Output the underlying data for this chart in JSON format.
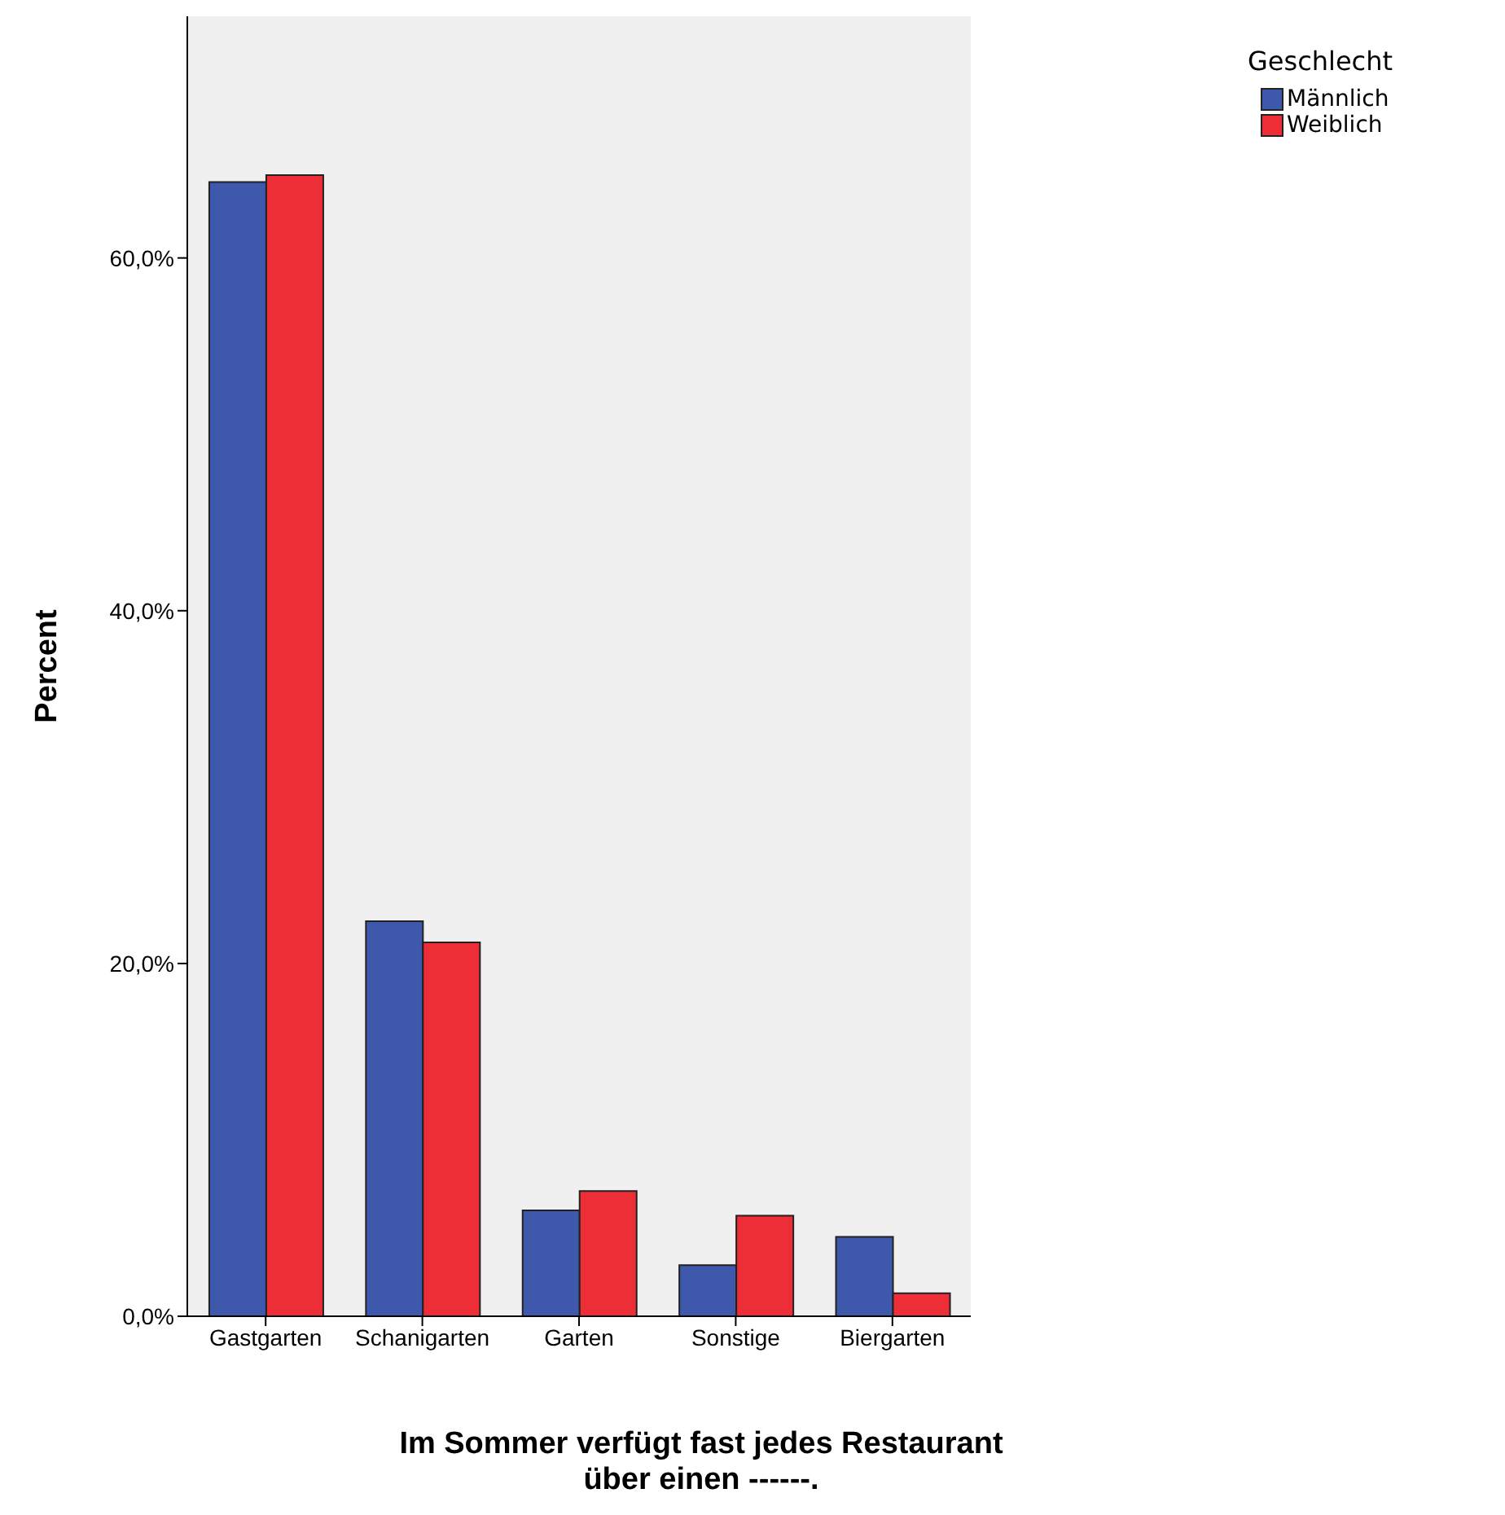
{
  "chart_data": {
    "type": "bar",
    "xlabel": "Im Sommer verfügt fast jedes Restaurant\nüber einen ------.",
    "ylabel": "Percent",
    "legend_title": "Geschlecht",
    "categories": [
      "Gastgarten",
      "Schanigarten",
      "Garten",
      "Sonstige",
      "Biergarten"
    ],
    "series": [
      {
        "name": "Männlich",
        "color": "#3e58ac",
        "values": [
          64.3,
          22.4,
          6.0,
          2.9,
          4.5
        ]
      },
      {
        "name": "Weiblich",
        "color": "#ee2e36",
        "values": [
          64.7,
          21.2,
          7.1,
          5.7,
          1.3
        ]
      }
    ],
    "ylim": [
      0,
      73.7
    ],
    "yticks": [
      {
        "value": 0,
        "label": "0,0%"
      },
      {
        "value": 20,
        "label": "20,0%"
      },
      {
        "value": 40,
        "label": "40,0%"
      },
      {
        "value": 60,
        "label": "60,0%"
      }
    ],
    "grid": false,
    "legend": "top right"
  }
}
